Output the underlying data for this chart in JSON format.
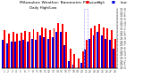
{
  "title": "Milwaukee Weather: Barometric Pressure",
  "subtitle": "Daily High/Low",
  "bar_width": 0.85,
  "ylim": [
    29.0,
    30.8
  ],
  "yticks": [
    29.0,
    29.1,
    29.2,
    29.3,
    29.4,
    29.5,
    29.6,
    29.7,
    29.8,
    29.9,
    30.0,
    30.1,
    30.2,
    30.3,
    30.4,
    30.5,
    30.6,
    30.7,
    30.8
  ],
  "ytick_labels": [
    "29.0",
    "29.1",
    "29.2",
    "29.3",
    "29.4",
    "29.5",
    "29.6",
    "29.7",
    "29.8",
    "29.9",
    "30.0",
    "30.1",
    "30.2",
    "30.3",
    "30.4",
    "30.5",
    "30.6",
    "30.7",
    "30.8"
  ],
  "days": [
    "1",
    "2",
    "3",
    "4",
    "5",
    "6",
    "7",
    "8",
    "9",
    "10",
    "11",
    "12",
    "13",
    "14",
    "15",
    "16",
    "17",
    "18",
    "19",
    "20",
    "21",
    "22",
    "23",
    "24",
    "25",
    "26",
    "27",
    "28"
  ],
  "highs": [
    30.15,
    30.05,
    30.1,
    30.05,
    30.08,
    30.12,
    30.1,
    30.18,
    30.1,
    30.25,
    30.2,
    30.15,
    30.22,
    30.38,
    30.35,
    30.1,
    29.6,
    29.42,
    29.3,
    29.5,
    29.85,
    30.2,
    30.3,
    30.35,
    30.25,
    30.2,
    30.15,
    29.9
  ],
  "lows": [
    29.85,
    29.75,
    29.8,
    29.8,
    29.82,
    29.85,
    29.8,
    29.9,
    29.85,
    30.0,
    29.95,
    29.9,
    29.95,
    30.1,
    30.1,
    29.7,
    29.2,
    29.1,
    29.0,
    29.15,
    29.55,
    29.9,
    30.0,
    30.1,
    30.0,
    29.9,
    29.85,
    29.6
  ],
  "high_color": "#FF0000",
  "low_color": "#0000DD",
  "bg_color": "#FFFFFF",
  "title_color": "#000000",
  "legend_high": "High",
  "legend_low": "Low",
  "highlight_indices": [
    20
  ],
  "highlight_box_color": "#AAAAFF"
}
